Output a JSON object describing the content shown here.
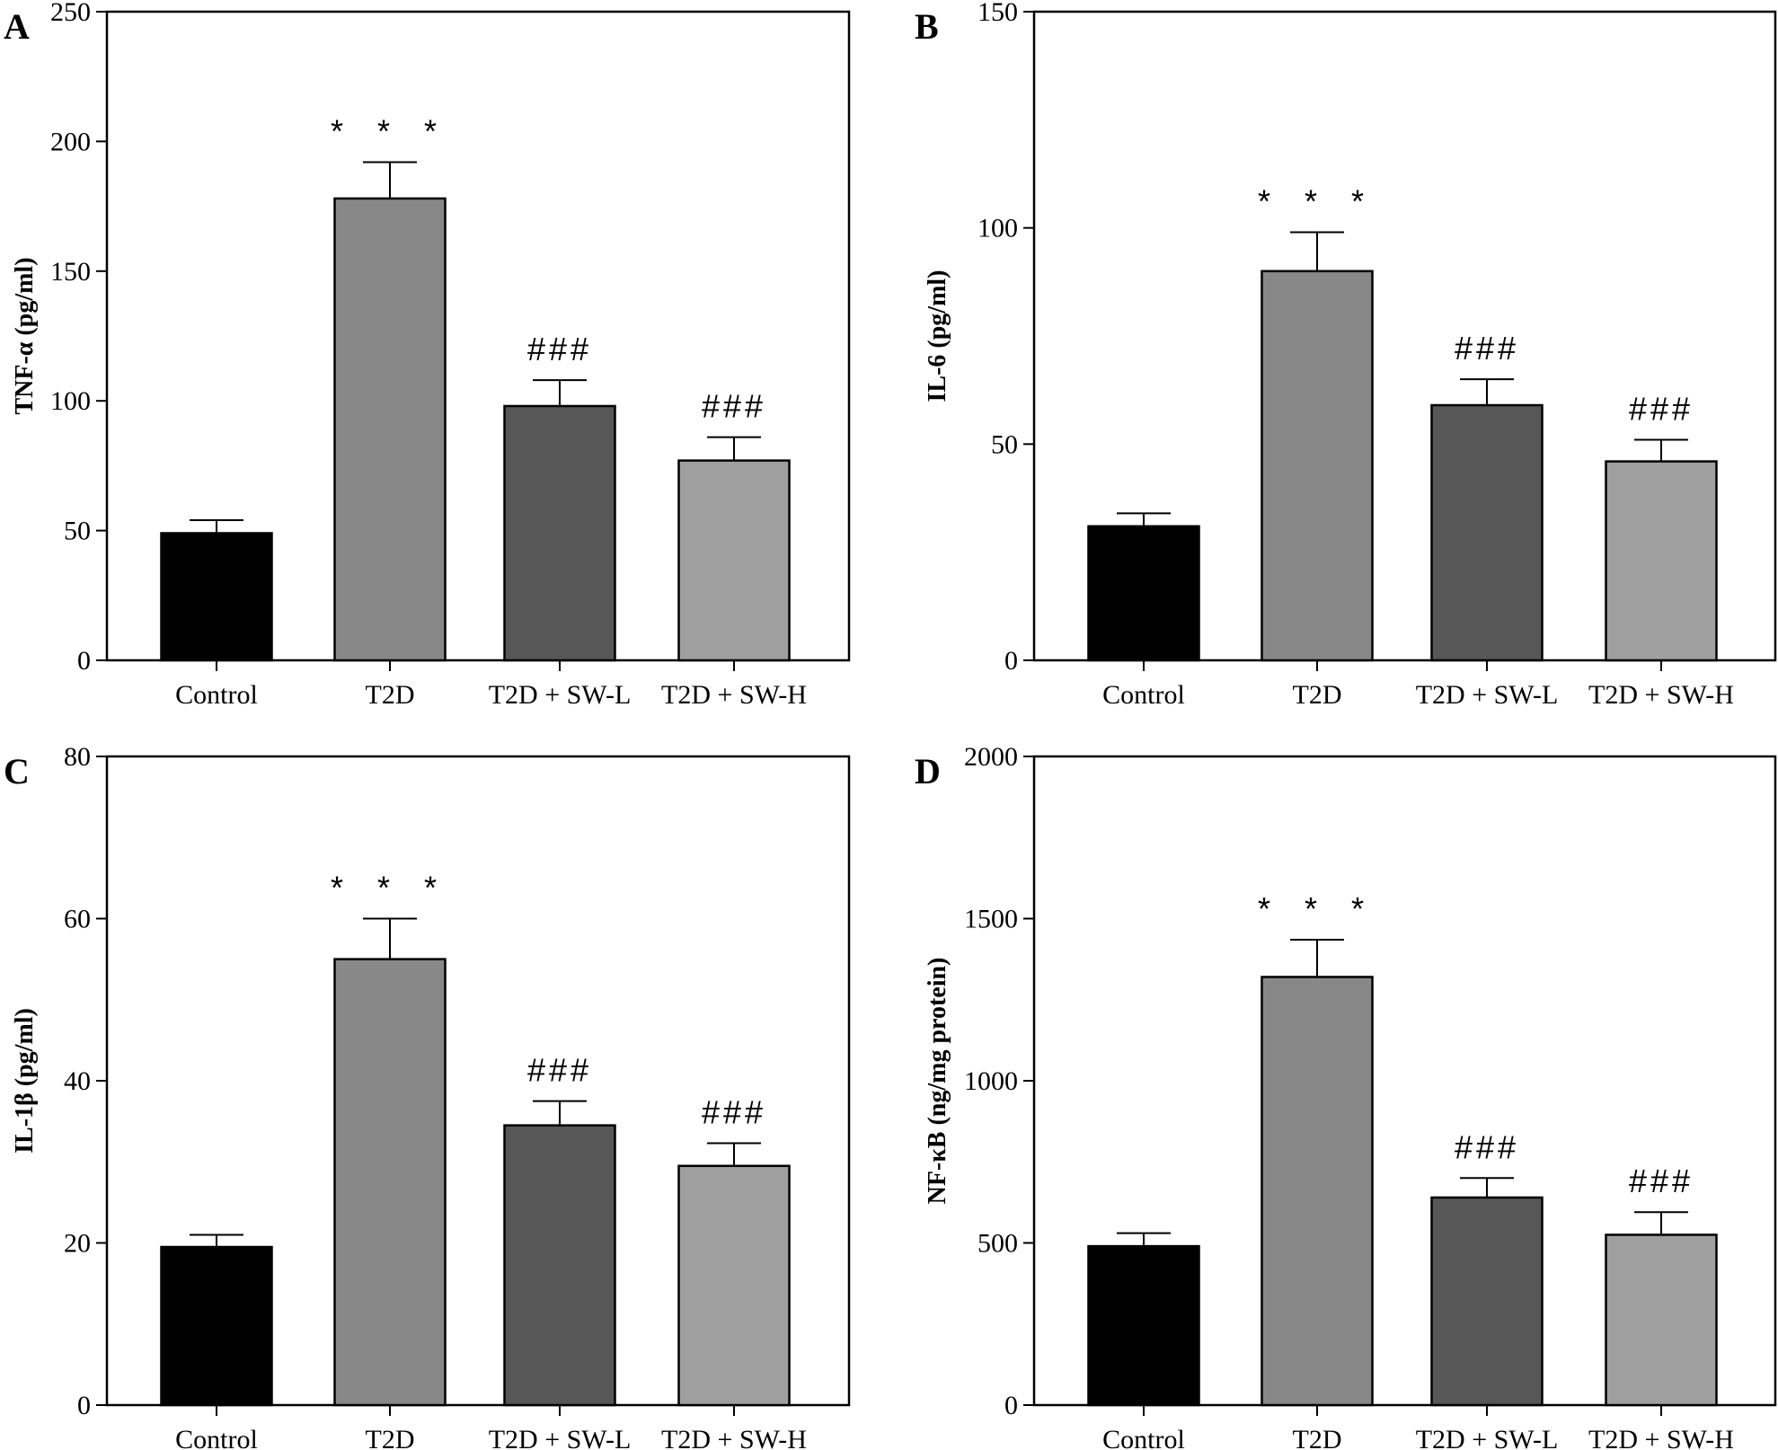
{
  "chart_data": [
    {
      "panel": "A",
      "type": "bar",
      "title": "",
      "xlabel": "",
      "ylabel": "TNF-α (pg/ml)",
      "ylim": [
        0,
        250
      ],
      "yticks": [
        0,
        50,
        100,
        150,
        200,
        250
      ],
      "categories": [
        "Control",
        "T2D",
        "T2D + SW-L",
        "T2D + SW-H"
      ],
      "values": [
        49,
        178,
        98,
        77
      ],
      "errors": [
        5,
        14,
        10,
        9
      ],
      "annotations": [
        "",
        "* * *",
        "###",
        "###"
      ],
      "colors": [
        "#000000",
        "#888888",
        "#575757",
        "#9f9f9f"
      ],
      "grid": false
    },
    {
      "panel": "B",
      "type": "bar",
      "title": "",
      "xlabel": "",
      "ylabel": "IL-6 (pg/ml)",
      "ylim": [
        0,
        150
      ],
      "yticks": [
        0,
        50,
        100,
        150
      ],
      "categories": [
        "Control",
        "T2D",
        "T2D + SW-L",
        "T2D + SW-H"
      ],
      "values": [
        31,
        90,
        59,
        46
      ],
      "errors": [
        3,
        9,
        6,
        5
      ],
      "annotations": [
        "",
        "* * *",
        "###",
        "###"
      ],
      "colors": [
        "#000000",
        "#888888",
        "#575757",
        "#9f9f9f"
      ],
      "grid": false
    },
    {
      "panel": "C",
      "type": "bar",
      "title": "",
      "xlabel": "",
      "ylabel": "IL-1β (pg/ml)",
      "ylim": [
        0,
        80
      ],
      "yticks": [
        0,
        20,
        40,
        60,
        80
      ],
      "categories": [
        "Control",
        "T2D",
        "T2D + SW-L",
        "T2D + SW-H"
      ],
      "values": [
        19.5,
        55,
        34.5,
        29.5
      ],
      "errors": [
        1.5,
        5,
        3,
        2.8
      ],
      "annotations": [
        "",
        "* * *",
        "###",
        "###"
      ],
      "colors": [
        "#000000",
        "#888888",
        "#575757",
        "#9f9f9f"
      ],
      "grid": false
    },
    {
      "panel": "D",
      "type": "bar",
      "title": "",
      "xlabel": "",
      "ylabel": "NF-κB (ng/mg protein)",
      "ylim": [
        0,
        2000
      ],
      "yticks": [
        0,
        500,
        1000,
        1500,
        2000
      ],
      "categories": [
        "Control",
        "T2D",
        "T2D + SW-L",
        "T2D + SW-H"
      ],
      "values": [
        490,
        1320,
        640,
        525
      ],
      "errors": [
        40,
        115,
        60,
        70
      ],
      "annotations": [
        "",
        "* * *",
        "###",
        "###"
      ],
      "colors": [
        "#000000",
        "#888888",
        "#575757",
        "#9f9f9f"
      ],
      "grid": false
    }
  ]
}
